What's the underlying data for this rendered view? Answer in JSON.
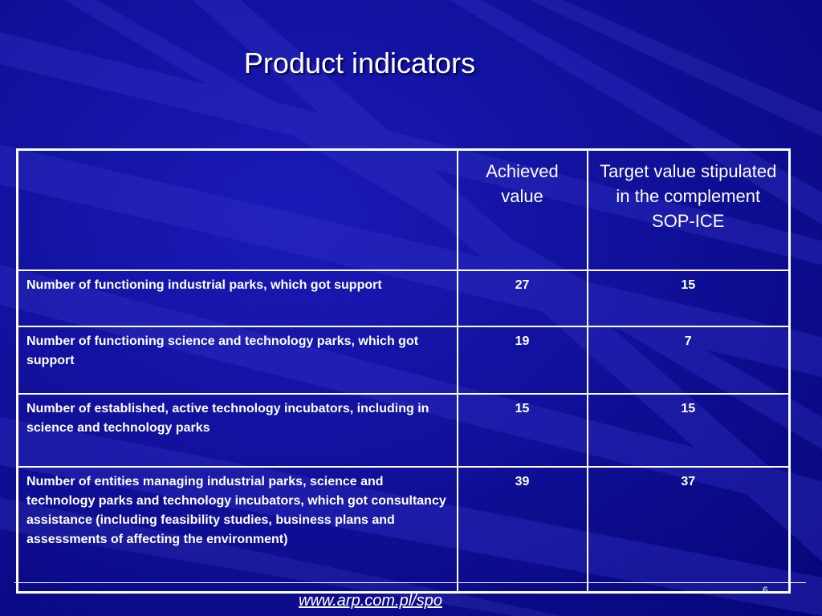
{
  "slide": {
    "title": "Product indicators",
    "page_number": "6",
    "footer_link": "www.arp.com.pl/spo"
  },
  "table": {
    "headers": {
      "corner": "",
      "achieved": "Achieved value",
      "target": "Target value stipulated in the complement SOP-ICE"
    },
    "rows": [
      {
        "label": "Number of functioning industrial parks, which got support",
        "achieved": "27",
        "target": "15"
      },
      {
        "label": "Number of functioning science and technology parks, which got support",
        "achieved": "19",
        "target": "7"
      },
      {
        "label": "Number of established, active technology incubators, including in science and technology parks",
        "achieved": "15",
        "target": "15"
      },
      {
        "label": "Number of entities managing industrial parks, science and technology parks and technology incubators, which got consultancy assistance (including feasibility studies, business plans and assessments of affecting the environment)",
        "achieved": "39",
        "target": "37"
      }
    ]
  },
  "colors": {
    "background": "#0f0fa0",
    "text": "#ffffff",
    "grid": "#ffffff"
  }
}
